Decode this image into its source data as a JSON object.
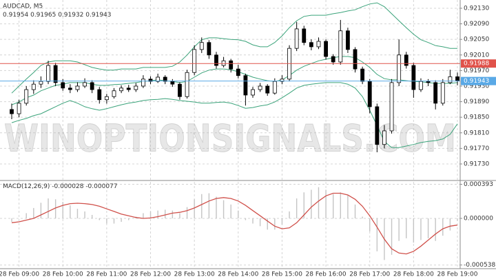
{
  "chart_data": [
    {
      "type": "candlestick",
      "title": "AUDCAD, M5",
      "watermark": "WINOPTIONSIGNALS.COM",
      "categories": [
        null,
        "28 Feb 09:00",
        null,
        null,
        null,
        null,
        null,
        "28 Feb 10:00",
        null,
        null,
        null,
        null,
        null,
        "28 Feb 11:00",
        null,
        null,
        null,
        null,
        null,
        "28 Feb 12:00",
        null,
        null,
        null,
        null,
        null,
        "28 Feb 13:00",
        null,
        null,
        null,
        null,
        null,
        "28 Feb 14:00",
        null,
        null,
        null,
        null,
        null,
        "28 Feb 15:00",
        null,
        null,
        null,
        null,
        null,
        "28 Feb 16:00",
        null,
        null,
        null,
        null,
        null,
        "28 Feb 17:00",
        null,
        null,
        null,
        null,
        null,
        "28 Feb 18:00",
        null,
        null,
        null,
        null,
        null,
        "28 Feb 19:00"
      ],
      "candles": [
        [
          0.9187,
          0.91885,
          0.91845,
          0.91859
        ],
        [
          0.91859,
          0.91895,
          0.9185,
          0.91886
        ],
        [
          0.91886,
          0.9193,
          0.9188,
          0.91921
        ],
        [
          0.91921,
          0.91945,
          0.9191,
          0.91935
        ],
        [
          0.91935,
          0.91955,
          0.91925,
          0.91942
        ],
        [
          0.91942,
          0.91995,
          0.91935,
          0.91983
        ],
        [
          0.91983,
          0.9199,
          0.9193,
          0.91939
        ],
        [
          0.91939,
          0.91948,
          0.91918,
          0.91925
        ],
        [
          0.91925,
          0.91935,
          0.91912,
          0.91921
        ],
        [
          0.91921,
          0.9194,
          0.91915,
          0.9193
        ],
        [
          0.9193,
          0.9195,
          0.91925,
          0.91939
        ],
        [
          0.91939,
          0.91945,
          0.91912,
          0.91921
        ],
        [
          0.91921,
          0.91928,
          0.91885,
          0.91895
        ],
        [
          0.91895,
          0.9191,
          0.91885,
          0.91903
        ],
        [
          0.91903,
          0.91925,
          0.91898,
          0.91918
        ],
        [
          0.91918,
          0.91932,
          0.91912,
          0.91925
        ],
        [
          0.91925,
          0.91933,
          0.91915,
          0.91921
        ],
        [
          0.91921,
          0.91938,
          0.91915,
          0.9193
        ],
        [
          0.9193,
          0.91958,
          0.91925,
          0.91948
        ],
        [
          0.91948,
          0.91955,
          0.91935,
          0.91942
        ],
        [
          0.91942,
          0.91962,
          0.91938,
          0.91953
        ],
        [
          0.91953,
          0.91958,
          0.91935,
          0.91942
        ],
        [
          0.91942,
          0.91948,
          0.91928,
          0.91935
        ],
        [
          0.91935,
          0.9194,
          0.91895,
          0.91903
        ],
        [
          0.91903,
          0.91972,
          0.91898,
          0.91965
        ],
        [
          0.91965,
          0.92035,
          0.91958,
          0.92024
        ],
        [
          0.92024,
          0.92055,
          0.92015,
          0.92042
        ],
        [
          0.92042,
          0.92048,
          0.92,
          0.9201
        ],
        [
          0.9201,
          0.92018,
          0.91975,
          0.91983
        ],
        [
          0.91983,
          0.92005,
          0.91978,
          0.91995
        ],
        [
          0.91995,
          0.92,
          0.91965,
          0.91974
        ],
        [
          0.91974,
          0.91985,
          0.9195,
          0.91957
        ],
        [
          0.91957,
          0.91962,
          0.9188,
          0.91907
        ],
        [
          0.91907,
          0.91928,
          0.919,
          0.91921
        ],
        [
          0.91921,
          0.91938,
          0.91915,
          0.9193
        ],
        [
          0.9193,
          0.91935,
          0.91905,
          0.91912
        ],
        [
          0.91912,
          0.9195,
          0.91908,
          0.91942
        ],
        [
          0.91942,
          0.91958,
          0.91935,
          0.91948
        ],
        [
          0.91948,
          0.92035,
          0.91942,
          0.92027
        ],
        [
          0.92027,
          0.92095,
          0.9202,
          0.92077
        ],
        [
          0.92077,
          0.92085,
          0.92035,
          0.92042
        ],
        [
          0.92042,
          0.9205,
          0.92022,
          0.92031
        ],
        [
          0.92031,
          0.92055,
          0.92025,
          0.92045
        ],
        [
          0.92045,
          0.9205,
          0.91998,
          0.92006
        ],
        [
          0.92006,
          0.92012,
          0.91985,
          0.91992
        ],
        [
          0.91992,
          0.921,
          0.91985,
          0.92072
        ],
        [
          0.92072,
          0.9208,
          0.92015,
          0.92024
        ],
        [
          0.92024,
          0.9203,
          0.91965,
          0.91974
        ],
        [
          0.91974,
          0.9198,
          0.91935,
          0.91942
        ],
        [
          0.91942,
          0.91948,
          0.9186,
          0.91877
        ],
        [
          0.91877,
          0.91885,
          0.9176,
          0.9178
        ],
        [
          0.9178,
          0.9183,
          0.9177,
          0.91815
        ],
        [
          0.91815,
          0.91948,
          0.91808,
          0.91939
        ],
        [
          0.91939,
          0.9205,
          0.9193,
          0.9201
        ],
        [
          0.9201,
          0.92018,
          0.91975,
          0.91983
        ],
        [
          0.91983,
          0.9199,
          0.919,
          0.91921
        ],
        [
          0.91921,
          0.9195,
          0.91915,
          0.91942
        ],
        [
          0.91942,
          0.91948,
          0.9193,
          0.91939
        ],
        [
          0.91939,
          0.91945,
          0.9187,
          0.91886
        ],
        [
          0.91886,
          0.91948,
          0.9188,
          0.91939
        ],
        [
          0.91939,
          0.91972,
          0.91935,
          0.91954
        ],
        [
          0.91954,
          0.91965,
          0.91932,
          0.91943
        ]
      ],
      "up_color": "#ffffff",
      "down_color": "#000000",
      "bands": {
        "color": "#3aa37a",
        "upper": [
          0.91912,
          0.9193,
          0.91948,
          0.91965,
          0.91983,
          0.91992,
          0.91995,
          0.91995,
          0.91995,
          0.91992,
          0.91985,
          0.91978,
          0.91974,
          0.91971,
          0.91971,
          0.91974,
          0.91974,
          0.91974,
          0.91978,
          0.91978,
          0.91978,
          0.91978,
          0.91981,
          0.91992,
          0.9201,
          0.92031,
          0.92049,
          0.92054,
          0.92054,
          0.92052,
          0.9205,
          0.92049,
          0.92045,
          0.92036,
          0.92031,
          0.92031,
          0.92042,
          0.92059,
          0.9208,
          0.92098,
          0.92109,
          0.92112,
          0.92112,
          0.92112,
          0.92116,
          0.92119,
          0.92123,
          0.92126,
          0.92134,
          0.92141,
          0.92144,
          0.92134,
          0.92116,
          0.92098,
          0.9208,
          0.92063,
          0.92049,
          0.92042,
          0.92034,
          0.92031,
          0.92027,
          0.92027
        ],
        "middle": [
          0.91882,
          0.91889,
          0.919,
          0.91907,
          0.91918,
          0.91925,
          0.91932,
          0.91935,
          0.91939,
          0.91939,
          0.91939,
          0.91935,
          0.91932,
          0.91932,
          0.91934,
          0.91935,
          0.91937,
          0.91939,
          0.91942,
          0.91944,
          0.91946,
          0.91944,
          0.91942,
          0.91939,
          0.91942,
          0.91953,
          0.91964,
          0.91971,
          0.91974,
          0.91974,
          0.91972,
          0.91967,
          0.9196,
          0.91953,
          0.91948,
          0.91944,
          0.91942,
          0.91946,
          0.91957,
          0.91971,
          0.91981,
          0.91988,
          0.91995,
          0.91999,
          0.92003,
          0.92006,
          0.92006,
          0.92003,
          0.91992,
          0.91978,
          0.9196,
          0.91949,
          0.91946,
          0.91946,
          0.91944,
          0.91942,
          0.91941,
          0.91939,
          0.91937,
          0.91937,
          0.91937,
          0.91939
        ],
        "lower": [
          0.91836,
          0.91842,
          0.91847,
          0.91854,
          0.91859,
          0.91868,
          0.91877,
          0.91886,
          0.91893,
          0.91886,
          0.91877,
          0.91872,
          0.91868,
          0.91872,
          0.91877,
          0.91882,
          0.91886,
          0.91889,
          0.91893,
          0.91895,
          0.91896,
          0.91898,
          0.91896,
          0.91893,
          0.91891,
          0.91889,
          0.91886,
          0.91886,
          0.91888,
          0.91889,
          0.91886,
          0.9188,
          0.91873,
          0.91875,
          0.91879,
          0.91882,
          0.91889,
          0.919,
          0.91912,
          0.91925,
          0.91932,
          0.91935,
          0.91937,
          0.91939,
          0.91939,
          0.91939,
          0.91935,
          0.91925,
          0.91903,
          0.91868,
          0.91829,
          0.91788,
          0.91772,
          0.91772,
          0.91776,
          0.9178,
          0.91785,
          0.91788,
          0.9179,
          0.91794,
          0.91806,
          0.91833
        ]
      },
      "price_lines": [
        {
          "value": 0.91988,
          "label": "0.91988",
          "color": "#e0524a"
        },
        {
          "value": 0.91943,
          "label": "0.91943",
          "color": "#5aa9e6"
        }
      ],
      "ylim": [
        0.916875,
        0.921512
      ],
      "yticks": [
        {
          "value": 0.9213,
          "label": "0.92130"
        },
        {
          "value": 0.9209,
          "label": "0.92090"
        },
        {
          "value": 0.9205,
          "label": "0.92050"
        },
        {
          "value": 0.9201,
          "label": "0.92010"
        },
        {
          "value": 0.9197,
          "label": "0.91970"
        },
        {
          "value": 0.9193,
          "label": "0.91930"
        },
        {
          "value": 0.9189,
          "label": "0.91890"
        },
        {
          "value": 0.9185,
          "label": "0.91850"
        },
        {
          "value": 0.9181,
          "label": "0.91810"
        },
        {
          "value": 0.9177,
          "label": "0.91770"
        },
        {
          "value": 0.9173,
          "label": "0.91730"
        }
      ],
      "grid": true
    },
    {
      "type": "macd",
      "title": "MACD(12,26,9)",
      "series": [
        {
          "kind": "histogram",
          "color": "#c4c4c4",
          "values": [
            -4e-05,
            0,
            6e-05,
            0.00012,
            0.00018,
            0.00023,
            0.00022,
            0.00019,
            0.00015,
            0.00011,
            8e-05,
            4e-05,
            -2e-05,
            -6e-05,
            -6e-05,
            -4e-05,
            -2e-05,
            2e-05,
            6e-05,
            8e-05,
            9e-05,
            0.0001,
            9e-05,
            6e-05,
            0.00013,
            0.00022,
            0.00028,
            0.00029,
            0.00025,
            0.00021,
            0.00016,
            9e-05,
            -2e-05,
            -6e-05,
            -9e-05,
            -0.00013,
            -0.00013,
            -7e-05,
            8e-05,
            0.00023,
            0.0003,
            0.00033,
            0.00036,
            0.00033,
            0.00028,
            0.0003,
            0.00027,
            0.00016,
            2e-05,
            -0.00015,
            -0.00038,
            -0.00048,
            -0.00042,
            -0.00026,
            -0.00023,
            -0.00028,
            -0.00025,
            -0.00023,
            -0.00026,
            -0.0002,
            -0.00014,
            -2.8e-05
          ]
        },
        {
          "kind": "line",
          "color": "#d0504a",
          "values": [
            -5e-05,
            -4e-05,
            -2e-05,
            0,
            4e-05,
            8e-05,
            0.00012,
            0.00015,
            0.00017,
            0.000175,
            0.00017,
            0.00016,
            0.00014,
            0.00011,
            8e-05,
            5e-05,
            3e-05,
            1e-05,
            0,
            5e-06,
            2e-05,
            4e-05,
            6e-05,
            7e-05,
            9e-05,
            0.00012,
            0.00016,
            0.0002,
            0.00023,
            0.00024,
            0.00023,
            0.0002,
            0.00015,
            9e-05,
            3e-05,
            -3e-05,
            -9e-05,
            -0.00012,
            -0.00011,
            -5e-05,
            4e-05,
            0.00013,
            0.0002,
            0.00026,
            0.00029,
            0.00029,
            0.00027,
            0.00022,
            0.00014,
            3e-05,
            -0.0001,
            -0.00024,
            -0.00035,
            -0.0004,
            -0.00041,
            -0.00038,
            -0.00032,
            -0.00025,
            -0.00018,
            -0.00012,
            -9e-05,
            -7.7e-05
          ]
        }
      ],
      "ylim": [
        -0.00058,
        0.000437
      ],
      "yticks": [
        0.000393,
        {
          "value": 0,
          "label": "0.000000"
        },
        -0.000538
      ],
      "grid": true
    }
  ]
}
